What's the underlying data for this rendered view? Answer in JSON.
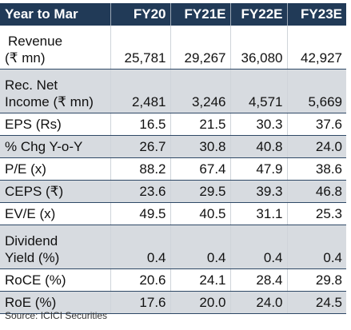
{
  "table": {
    "header": {
      "label": "Year to Mar",
      "years": [
        "FY20",
        "FY21E",
        "FY22E",
        "FY23E"
      ]
    },
    "rows": [
      {
        "label_lines": [
          "Revenue",
          "(₹ mn)"
        ],
        "values": [
          "25,781",
          "29,267",
          "36,080",
          "42,927"
        ]
      },
      {
        "label_lines": [
          "Rec. Net",
          "Income (₹ mn)"
        ],
        "values": [
          "2,481",
          "3,246",
          "4,571",
          "5,669"
        ]
      },
      {
        "label_lines": [
          "EPS (Rs)"
        ],
        "values": [
          "16.5",
          "21.5",
          "30.3",
          "37.6"
        ]
      },
      {
        "label_lines": [
          "% Chg Y-o-Y"
        ],
        "values": [
          "26.7",
          "30.8",
          "40.8",
          "24.0"
        ]
      },
      {
        "label_lines": [
          "P/E (x)"
        ],
        "values": [
          "88.2",
          "67.4",
          "47.9",
          "38.6"
        ]
      },
      {
        "label_lines": [
          "CEPS (₹)"
        ],
        "values": [
          "23.6",
          "29.5",
          "39.3",
          "46.8"
        ]
      },
      {
        "label_lines": [
          "EV/E (x)"
        ],
        "values": [
          "49.5",
          "40.5",
          "31.1",
          "25.3"
        ]
      },
      {
        "label_lines": [
          "Dividend",
          "Yield (%)"
        ],
        "values": [
          "0.4",
          "0.4",
          "0.4",
          "0.4"
        ]
      },
      {
        "label_lines": [
          "RoCE (%)"
        ],
        "values": [
          "20.6",
          "24.1",
          "28.4",
          "29.8"
        ]
      },
      {
        "label_lines": [
          "RoE (%)"
        ],
        "values": [
          "17.6",
          "20.0",
          "24.0",
          "24.5"
        ]
      }
    ]
  },
  "source": "Source: ICICI Securities",
  "colors": {
    "header_bg": "#213a57",
    "header_text": "#ffffff",
    "shade_row": "#d7dbe0",
    "rule": "#2e4866"
  }
}
